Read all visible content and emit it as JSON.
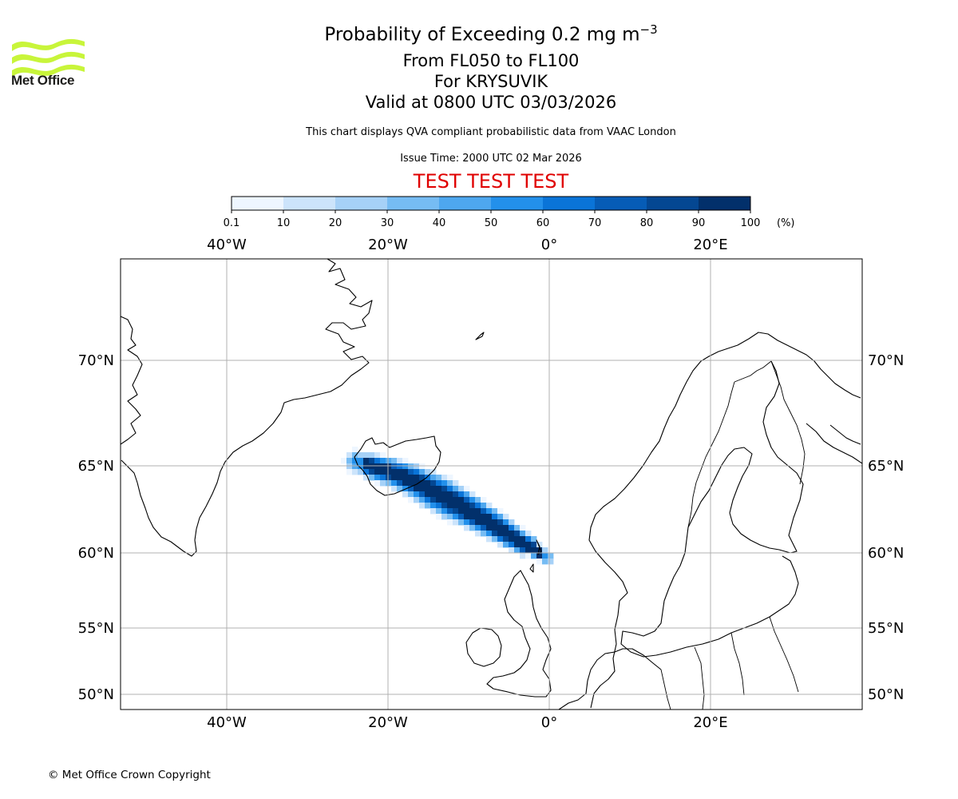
{
  "branding": {
    "logo_text": "Met Office",
    "logo_color": "#c8f53a",
    "copyright": "© Met Office Crown Copyright"
  },
  "header": {
    "title_main": "Probability of Exceeding 0.2 mg m",
    "title_unit_exponent": "−3",
    "level_range": "From FL050 to FL100",
    "volcano": "For KRYSUVIK",
    "valid_time": "Valid at 0800 UTC 03/03/2026",
    "disclaimer": "This chart displays QVA compliant probabilistic data from VAAC London",
    "issue_time": "Issue Time: 2000 UTC 02 Mar 2026",
    "test_banner": "TEST TEST TEST"
  },
  "colorbar": {
    "ticks": [
      "0.1",
      "10",
      "20",
      "30",
      "40",
      "50",
      "60",
      "70",
      "80",
      "90",
      "100"
    ],
    "unit": "(%)",
    "colors": [
      "#eef6ff",
      "#cce4fb",
      "#a6d1f7",
      "#76bcf3",
      "#4ea7ef",
      "#2390eb",
      "#0a74d8",
      "#065cb6",
      "#044792",
      "#02306b"
    ]
  },
  "map": {
    "lon_labels": [
      "40°W",
      "20°W",
      "0°",
      "20°E"
    ],
    "lat_labels": [
      "70°N",
      "65°N",
      "60°N",
      "55°N",
      "50°N"
    ],
    "plume_axis": [
      [
        -24,
        65.2
      ],
      [
        -18,
        64.4
      ],
      [
        -13,
        63.2
      ],
      [
        -8,
        61.9
      ],
      [
        -3.5,
        60.6
      ],
      [
        -0.3,
        59.7
      ]
    ]
  }
}
